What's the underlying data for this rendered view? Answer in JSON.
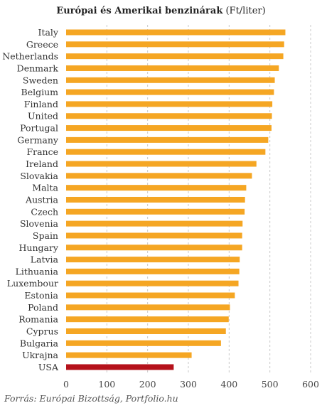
{
  "chart_data": {
    "type": "bar",
    "orientation": "horizontal",
    "title": "Európai és Amerikai benzinárak",
    "title_unit": "(Ft/liter)",
    "xlim": [
      0,
      600
    ],
    "xticks": [
      "0",
      "100",
      "200",
      "300",
      "400",
      "500",
      "600"
    ],
    "grid": "vertical dashed",
    "categories": [
      "Italy",
      "Greece",
      "Netherlands",
      "Denmark",
      "Sweden",
      "Belgium",
      "Finland",
      "United",
      "Portugal",
      "Germany",
      "France",
      "Ireland",
      "Slovakia",
      "Malta",
      "Austria",
      "Czech",
      "Slovenia",
      "Spain",
      "Hungary",
      "Latvia",
      "Lithuania",
      "Luxembour",
      "Estonia",
      "Poland",
      "Romania",
      "Cyprus",
      "Bulgaria",
      "Ukrajna",
      "USA"
    ],
    "values": [
      538,
      535,
      533,
      522,
      512,
      510,
      506,
      505,
      504,
      496,
      489,
      467,
      456,
      442,
      439,
      438,
      433,
      432,
      432,
      426,
      425,
      423,
      414,
      402,
      399,
      392,
      380,
      308,
      264
    ],
    "colors": {
      "default": "#F5A623",
      "highlight": "#B5121B",
      "highlight_category": "USA"
    }
  },
  "source": "Forrás: Európai Bizottság, Portfolio.hu"
}
